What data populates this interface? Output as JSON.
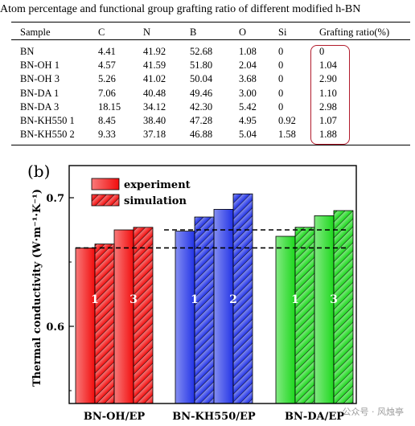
{
  "table": {
    "caption": "Atom percentage and functional group grafting ratio of different modified h-BN",
    "headers": [
      "Sample",
      "C",
      "N",
      "B",
      "O",
      "Si",
      "Grafting ratio(%)"
    ],
    "rows": [
      [
        "BN",
        "4.41",
        "41.92",
        "52.68",
        "1.08",
        "0",
        "0"
      ],
      [
        "BN-OH 1",
        "4.57",
        "41.59",
        "51.80",
        "2.04",
        "0",
        "1.04"
      ],
      [
        "BN-OH 3",
        "5.26",
        "41.02",
        "50.04",
        "3.68",
        "0",
        "2.90"
      ],
      [
        "BN-DA 1",
        "7.06",
        "40.48",
        "49.46",
        "3.00",
        "0",
        "1.10"
      ],
      [
        "BN-DA 3",
        "18.15",
        "34.12",
        "42.30",
        "5.42",
        "0",
        "2.98"
      ],
      [
        "BN-KH550 1",
        "8.45",
        "38.40",
        "47.28",
        "4.95",
        "0.92",
        "1.07"
      ],
      [
        "BN-KH550 2",
        "9.33",
        "37.18",
        "46.88",
        "5.04",
        "1.58",
        "1.88"
      ]
    ],
    "highlight_color": "#b21b2c"
  },
  "chart_data": {
    "type": "bar",
    "panel_label": "(b)",
    "ylabel": "Thermal conductivity (W·m⁻¹·K⁻¹)",
    "ylim": [
      0.54,
      0.725
    ],
    "yticks": [
      0.6,
      0.7
    ],
    "legend": [
      "experiment",
      "simulation"
    ],
    "legend_position": "top-left",
    "groups": [
      {
        "name": "BN-OH/EP",
        "color": "#f20d0d",
        "bars": [
          {
            "kind": "experiment",
            "value": 0.661,
            "label": ""
          },
          {
            "kind": "simulation",
            "value": 0.664,
            "label": "1"
          },
          {
            "kind": "experiment",
            "value": 0.675,
            "label": ""
          },
          {
            "kind": "simulation",
            "value": 0.677,
            "label": "3"
          }
        ]
      },
      {
        "name": "BN-KH550/EP",
        "color": "#2233e6",
        "bars": [
          {
            "kind": "experiment",
            "value": 0.674,
            "label": ""
          },
          {
            "kind": "simulation",
            "value": 0.685,
            "label": "1"
          },
          {
            "kind": "experiment",
            "value": 0.691,
            "label": ""
          },
          {
            "kind": "simulation",
            "value": 0.703,
            "label": "2"
          }
        ]
      },
      {
        "name": "BN-DA/EP",
        "color": "#1ed81e",
        "bars": [
          {
            "kind": "experiment",
            "value": 0.67,
            "label": ""
          },
          {
            "kind": "simulation",
            "value": 0.677,
            "label": "1"
          },
          {
            "kind": "experiment",
            "value": 0.686,
            "label": ""
          },
          {
            "kind": "simulation",
            "value": 0.69,
            "label": "3"
          }
        ]
      }
    ],
    "reference_lines": [
      0.661,
      0.675
    ]
  },
  "watermark": "公众号 · 风烛亭"
}
